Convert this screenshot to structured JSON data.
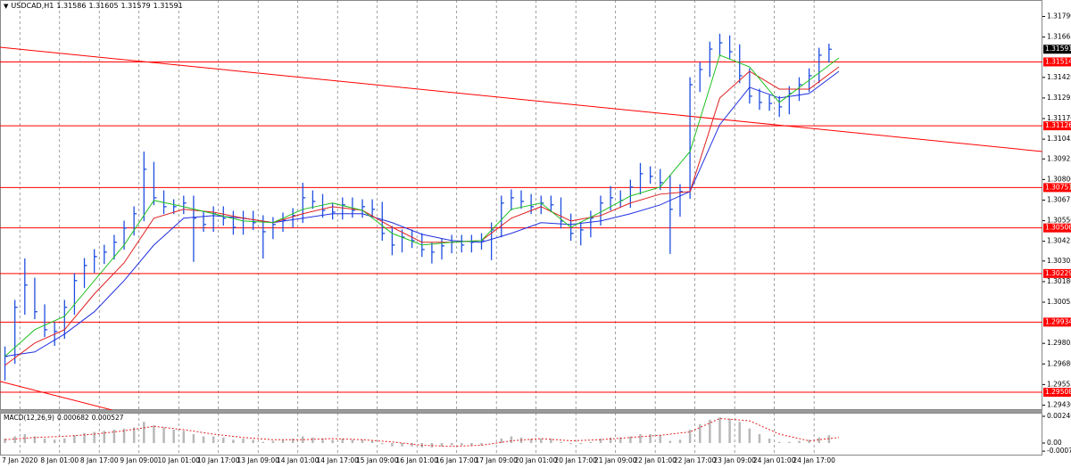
{
  "chart_data": {
    "type": "ohlc",
    "title": "USDCAD,H1",
    "quote": [
      1.31586,
      1.31605,
      1.31579,
      1.31591
    ],
    "color": "#1f4fe0",
    "xlim": [
      0,
      420
    ],
    "xticks": [
      {
        "value": 8,
        "label": "7 Jan 2020"
      },
      {
        "value": 24,
        "label": "8 Jan 01:00"
      },
      {
        "value": 40,
        "label": "8 Jan 17:00"
      },
      {
        "value": 56,
        "label": "9 Jan 09:00"
      },
      {
        "value": 72,
        "label": "10 Jan 01:00"
      },
      {
        "value": 88,
        "label": "10 Jan 17:00"
      },
      {
        "value": 104,
        "label": "13 Jan 09:00"
      },
      {
        "value": 120,
        "label": "14 Jan 01:00"
      },
      {
        "value": 136,
        "label": "14 Jan 17:00"
      },
      {
        "value": 152,
        "label": "15 Jan 09:00"
      },
      {
        "value": 168,
        "label": "16 Jan 01:00"
      },
      {
        "value": 184,
        "label": "16 Jan 17:00"
      },
      {
        "value": 200,
        "label": "17 Jan 09:00"
      },
      {
        "value": 216,
        "label": "20 Jan 01:00"
      },
      {
        "value": 232,
        "label": "20 Jan 17:00"
      },
      {
        "value": 248,
        "label": "21 Jan 09:00"
      },
      {
        "value": 264,
        "label": "22 Jan 01:00"
      },
      {
        "value": 280,
        "label": "22 Jan 17:00"
      },
      {
        "value": 296,
        "label": "23 Jan 09:00"
      },
      {
        "value": 312,
        "label": "24 Jan 01:00"
      },
      {
        "value": 328,
        "label": "24 Jan 17:00"
      }
    ],
    "ylim": [
      1.294,
      1.3189
    ],
    "yticks": [
      {
        "value": 1.3179,
        "label": "1.31790"
      },
      1.31665,
      {
        "value": 1.3142,
        "label": "1.31420"
      },
      1.31295,
      {
        "value": 1.3117,
        "label": "1.31170"
      },
      1.31045,
      1.30925,
      {
        "value": 1.308,
        "label": "1.30800"
      },
      1.30675,
      {
        "value": 1.3055,
        "label": "1.30550"
      },
      1.30425,
      1.30305,
      {
        "value": 1.3018,
        "label": "1.30180"
      },
      1.30055,
      1.29805,
      {
        "value": 1.2968,
        "label": "1.29680"
      },
      1.29555,
      {
        "value": 1.2943,
        "label": "1.29430"
      }
    ],
    "x": [
      2,
      6,
      10,
      14,
      18,
      22,
      26,
      30,
      34,
      38,
      42,
      46,
      50,
      54,
      58,
      62,
      66,
      70,
      74,
      78,
      82,
      86,
      90,
      94,
      98,
      102,
      106,
      110,
      114,
      118,
      122,
      126,
      130,
      134,
      138,
      142,
      146,
      150,
      154,
      158,
      162,
      166,
      170,
      174,
      178,
      182,
      186,
      190,
      194,
      198,
      202,
      206,
      210,
      214,
      218,
      222,
      226,
      230,
      234,
      238,
      242,
      246,
      250,
      254,
      258,
      262,
      266,
      270,
      274,
      278,
      282,
      286,
      290,
      294,
      298,
      302,
      306,
      310,
      314,
      318,
      322,
      326,
      330,
      334
    ],
    "high": [
      1.29786,
      1.30069,
      1.30321,
      1.30204,
      1.30042,
      1.29933,
      1.30069,
      1.30231,
      1.30323,
      1.30377,
      1.30404,
      1.30464,
      1.3055,
      1.30637,
      1.3097,
      1.30907,
      1.30734,
      1.3068,
      1.30702,
      1.30702,
      1.3061,
      1.30637,
      1.30637,
      1.3061,
      1.3061,
      1.3061,
      1.30583,
      1.30572,
      1.30599,
      1.30626,
      1.3078,
      1.30734,
      1.30712,
      1.30658,
      1.30691,
      1.30691,
      1.3068,
      1.3068,
      1.30664,
      1.30518,
      1.30496,
      1.30496,
      1.30474,
      1.3042,
      1.30442,
      1.30464,
      1.30464,
      1.30464,
      1.30474,
      1.30539,
      1.30702,
      1.3074,
      1.30734,
      1.30712,
      1.30702,
      1.30702,
      1.30691,
      1.30593,
      1.30539,
      1.3061,
      1.30702,
      1.3076,
      1.30734,
      1.30799,
      1.309,
      1.3088,
      1.30864,
      1.30826,
      1.30772,
      1.31421,
      1.31513,
      1.31637,
      1.31685,
      1.31675,
      1.31621,
      1.31475,
      1.31351,
      1.31313,
      1.31307,
      1.31367,
      1.31421,
      1.31475,
      1.316,
      1.31625
    ],
    "low": [
      1.2958,
      1.29681,
      1.29979,
      1.29952,
      1.29843,
      1.2979,
      1.29833,
      1.29979,
      1.30141,
      1.30233,
      1.30287,
      1.30314,
      1.30374,
      1.3046,
      1.30547,
      1.30644,
      1.3059,
      1.3059,
      1.3059,
      1.303,
      1.30482,
      1.30482,
      1.3052,
      1.30465,
      1.30465,
      1.30493,
      1.3032,
      1.30438,
      1.30482,
      1.30509,
      1.30536,
      1.30622,
      1.30568,
      1.30557,
      1.30557,
      1.30568,
      1.30568,
      1.30574,
      1.30428,
      1.3034,
      1.30357,
      1.30384,
      1.3033,
      1.3029,
      1.30314,
      1.30352,
      1.30357,
      1.30357,
      1.30374,
      1.3031,
      1.30449,
      1.30612,
      1.30622,
      1.3059,
      1.3059,
      1.30601,
      1.30503,
      1.30428,
      1.304,
      1.30449,
      1.3052,
      1.30612,
      1.30628,
      1.30628,
      1.30709,
      1.30774,
      1.30736,
      1.30348,
      1.30574,
      1.30682,
      1.31331,
      1.31423,
      1.31547,
      1.31531,
      1.31385,
      1.31261,
      1.31223,
      1.31217,
      1.3118,
      1.31196,
      1.31277,
      1.31331,
      1.31385,
      1.3151
    ],
    "close": [
      1.29726,
      1.30024,
      1.30159,
      1.29997,
      1.29888,
      1.29878,
      1.30024,
      1.30186,
      1.30278,
      1.30332,
      1.30359,
      1.30419,
      1.30505,
      1.30592,
      1.30862,
      1.30689,
      1.30635,
      1.30635,
      1.30657,
      1.30565,
      1.30527,
      1.30592,
      1.30565,
      1.3051,
      1.30565,
      1.30538,
      1.30483,
      1.30527,
      1.30554,
      1.30581,
      1.30689,
      1.30667,
      1.30613,
      1.30602,
      1.30646,
      1.30613,
      1.30635,
      1.30619,
      1.30473,
      1.30402,
      1.30451,
      1.30429,
      1.30375,
      1.30359,
      1.30397,
      1.30419,
      1.30402,
      1.30419,
      1.30429,
      1.30494,
      1.30657,
      1.30689,
      1.30667,
      1.30635,
      1.30657,
      1.30646,
      1.30548,
      1.30473,
      1.30494,
      1.30565,
      1.30657,
      1.30689,
      1.30673,
      1.30754,
      1.30835,
      1.30819,
      1.30781,
      1.30619,
      1.30727,
      1.31376,
      1.31468,
      1.31592,
      1.3163,
      1.31576,
      1.3143,
      1.31306,
      1.31268,
      1.31262,
      1.31241,
      1.31322,
      1.31376,
      1.3143,
      1.31555,
      1.31591
    ],
    "last_price": 1.31591,
    "ma_x": [
      2,
      14,
      26,
      38,
      50,
      62,
      74,
      86,
      98,
      110,
      122,
      134,
      146,
      158,
      170,
      182,
      194,
      206,
      218,
      230,
      242,
      254,
      266,
      278,
      290,
      302,
      314,
      326,
      338
    ],
    "moving_averages": [
      {
        "color": "#2030e0",
        "values": [
          1.29726,
          1.29753,
          1.29861,
          1.29997,
          1.30186,
          1.30402,
          1.30565,
          1.30581,
          1.30565,
          1.30538,
          1.30565,
          1.30592,
          1.30592,
          1.30538,
          1.30467,
          1.30429,
          1.30419,
          1.30473,
          1.30538,
          1.30527,
          1.30548,
          1.30592,
          1.30646,
          1.30727,
          1.31133,
          1.3136,
          1.31295,
          1.31322,
          1.31457
        ]
      },
      {
        "color": "#e02020",
        "values": [
          1.29672,
          1.29807,
          1.29888,
          1.30105,
          1.30294,
          1.30565,
          1.30619,
          1.30602,
          1.30565,
          1.30538,
          1.30592,
          1.30635,
          1.30613,
          1.3051,
          1.30419,
          1.30419,
          1.30429,
          1.30565,
          1.30635,
          1.30548,
          1.30581,
          1.30657,
          1.30711,
          1.30727,
          1.31295,
          1.31457,
          1.31349,
          1.31349,
          1.31484
        ]
      },
      {
        "color": "#20c020",
        "values": [
          1.29726,
          1.29888,
          1.29969,
          1.30186,
          1.30402,
          1.30673,
          1.30635,
          1.30592,
          1.30548,
          1.30538,
          1.30619,
          1.30657,
          1.30613,
          1.30473,
          1.30402,
          1.30419,
          1.30429,
          1.30619,
          1.30657,
          1.3051,
          1.30602,
          1.307,
          1.30754,
          1.3097,
          1.31555,
          1.31484,
          1.31268,
          1.31403,
          1.31538
        ]
      }
    ],
    "levels": {
      "color": "#ff0000",
      "values": [
        1.31514,
        1.31126,
        1.30751,
        1.30506,
        1.30229,
        1.29934,
        1.29508
      ]
    },
    "trend_lines": [
      {
        "color": "#ff0000",
        "x": [
          0,
          420
        ],
        "values": [
          1.31603,
          1.3097
        ]
      },
      {
        "color": "#ff0000",
        "x": [
          0,
          45
        ],
        "values": [
          1.29574,
          1.29401
        ]
      }
    ],
    "macd": {
      "type": "bar",
      "title": "MACD(12,26,9)",
      "readout": [
        0.000682,
        0.000527
      ],
      "ylim": [
        -0.00104,
        0.00272
      ],
      "yticks": [
        0.002401,
        {
          "value": 0,
          "label": "0.00"
        },
        -0.000728
      ],
      "histogram": {
        "color": "#b8b8b8",
        "values": [
          0.0004,
          0.0006,
          0.0008,
          0.0006,
          0.0004,
          0.0003,
          0.0004,
          0.0007,
          0.0009,
          0.001,
          0.0011,
          0.0012,
          0.0013,
          0.0014,
          0.0019,
          0.0016,
          0.0014,
          0.0012,
          0.0011,
          0.0008,
          0.0006,
          0.0006,
          0.0005,
          0.0003,
          0.0004,
          0.0003,
          0.0001,
          0.0002,
          0.0003,
          0.0004,
          0.0006,
          0.0005,
          0.0004,
          0.0003,
          0.0004,
          0.0003,
          0.0003,
          0.0002,
          -0.0001,
          -0.0003,
          -0.0003,
          -0.0003,
          -0.0004,
          -0.0004,
          -0.0003,
          -0.0002,
          -0.0002,
          -0.0002,
          -0.0002,
          0.0,
          0.0004,
          0.0006,
          0.0005,
          0.0004,
          0.0004,
          0.0004,
          0.0001,
          -0.0001,
          -0.0001,
          0.0001,
          0.0004,
          0.0005,
          0.0005,
          0.0006,
          0.0008,
          0.0008,
          0.0007,
          0.0002,
          0.0003,
          0.0012,
          0.0017,
          0.0021,
          0.0023,
          0.0022,
          0.0019,
          0.0013,
          0.0008,
          0.0004,
          0.0001,
          0.0001,
          0.0002,
          0.0003,
          0.0005,
          0.0007
        ]
      },
      "signal": {
        "color": "#e02020",
        "values": [
          0.0003,
          0.0005,
          0.0006,
          0.0008,
          0.0011,
          0.0015,
          0.0012,
          0.0008,
          0.0005,
          0.0003,
          0.0003,
          0.0004,
          0.0003,
          0.0001,
          -0.0002,
          -0.0003,
          -0.0002,
          0.0002,
          0.0004,
          0.0002,
          0.0003,
          0.0005,
          0.0007,
          0.001,
          0.0022,
          0.002,
          0.0008,
          0.0002,
          0.0005
        ]
      }
    }
  }
}
